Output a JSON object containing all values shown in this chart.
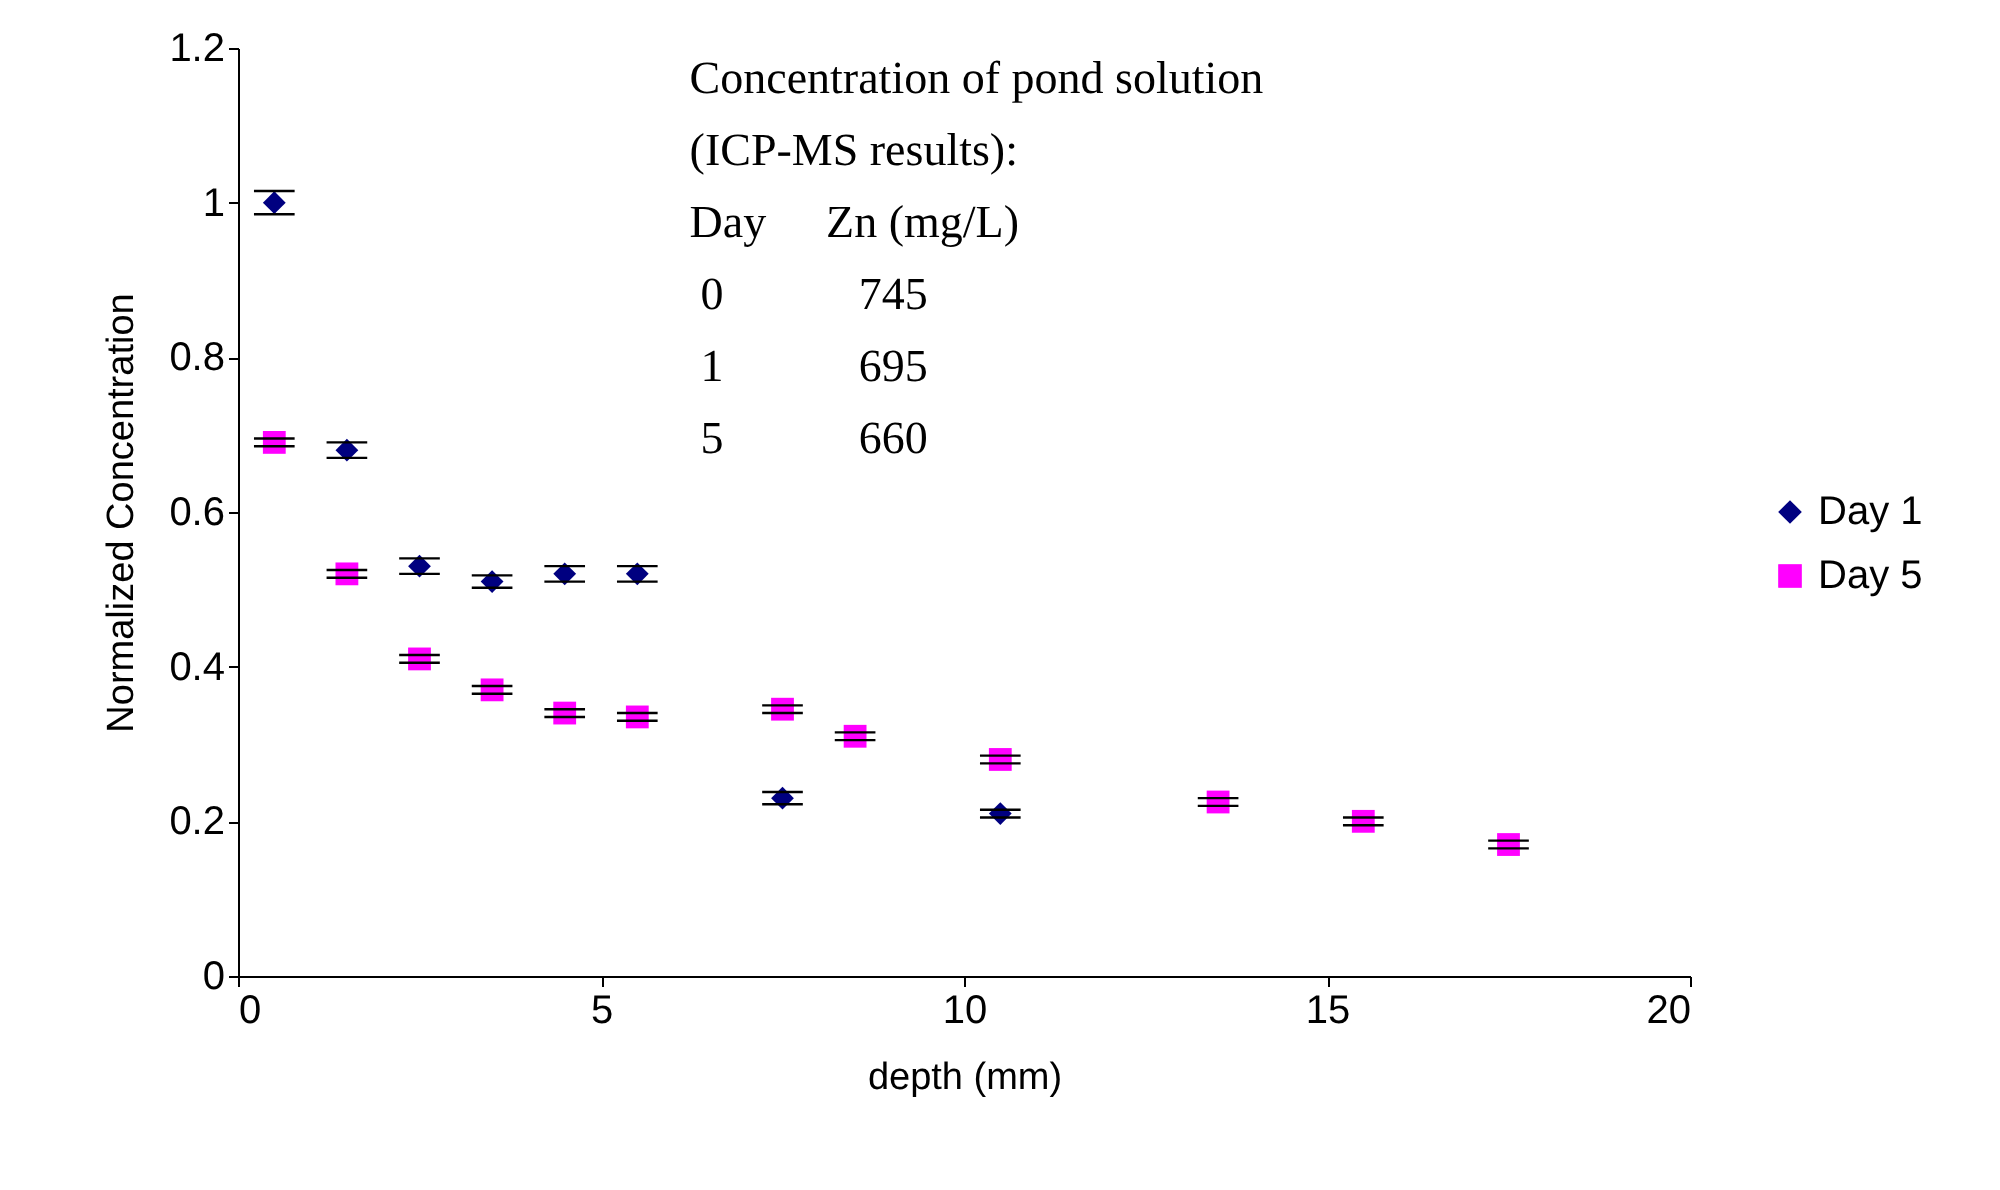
{
  "chart_data": {
    "type": "scatter",
    "xlabel": "depth (mm)",
    "ylabel": "Normalized Concentration",
    "xlim": [
      0,
      20
    ],
    "xticks": [
      0,
      5,
      10,
      15,
      20
    ],
    "ylim": [
      0,
      1.2
    ],
    "yticks": [
      0,
      0.2,
      0.4,
      0.6,
      0.8,
      1,
      1.2
    ],
    "grid": false,
    "legend": "right",
    "series": [
      {
        "name": "Day 1",
        "color": "#000080",
        "marker": "diamond",
        "x": [
          0.5,
          1.5,
          2.5,
          3.5,
          4.5,
          5.5,
          7.5,
          10.5
        ],
        "values": [
          1.0,
          0.68,
          0.53,
          0.51,
          0.52,
          0.52,
          0.23,
          0.21
        ],
        "errors": [
          0.015,
          0.01,
          0.01,
          0.008,
          0.01,
          0.01,
          0.008,
          0.005
        ]
      },
      {
        "name": "Day 5",
        "color": "#ff00ff",
        "marker": "square",
        "x": [
          0.5,
          1.5,
          2.5,
          3.5,
          4.5,
          5.5,
          7.5,
          8.5,
          10.5,
          13.5,
          15.5,
          17.5
        ],
        "values": [
          0.69,
          0.52,
          0.41,
          0.37,
          0.34,
          0.335,
          0.345,
          0.31,
          0.28,
          0.225,
          0.2,
          0.17
        ],
        "errors": [
          0.005,
          0.005,
          0.005,
          0.005,
          0.005,
          0.005,
          0.005,
          0.005,
          0.005,
          0.005,
          0.005,
          0.005
        ]
      }
    ],
    "annotations": [
      "Concentration of pond solution",
      "(ICP-MS results):",
      "Day",
      "Zn (mg/L)",
      "0",
      "745",
      "1",
      "695",
      "5",
      "660"
    ]
  }
}
